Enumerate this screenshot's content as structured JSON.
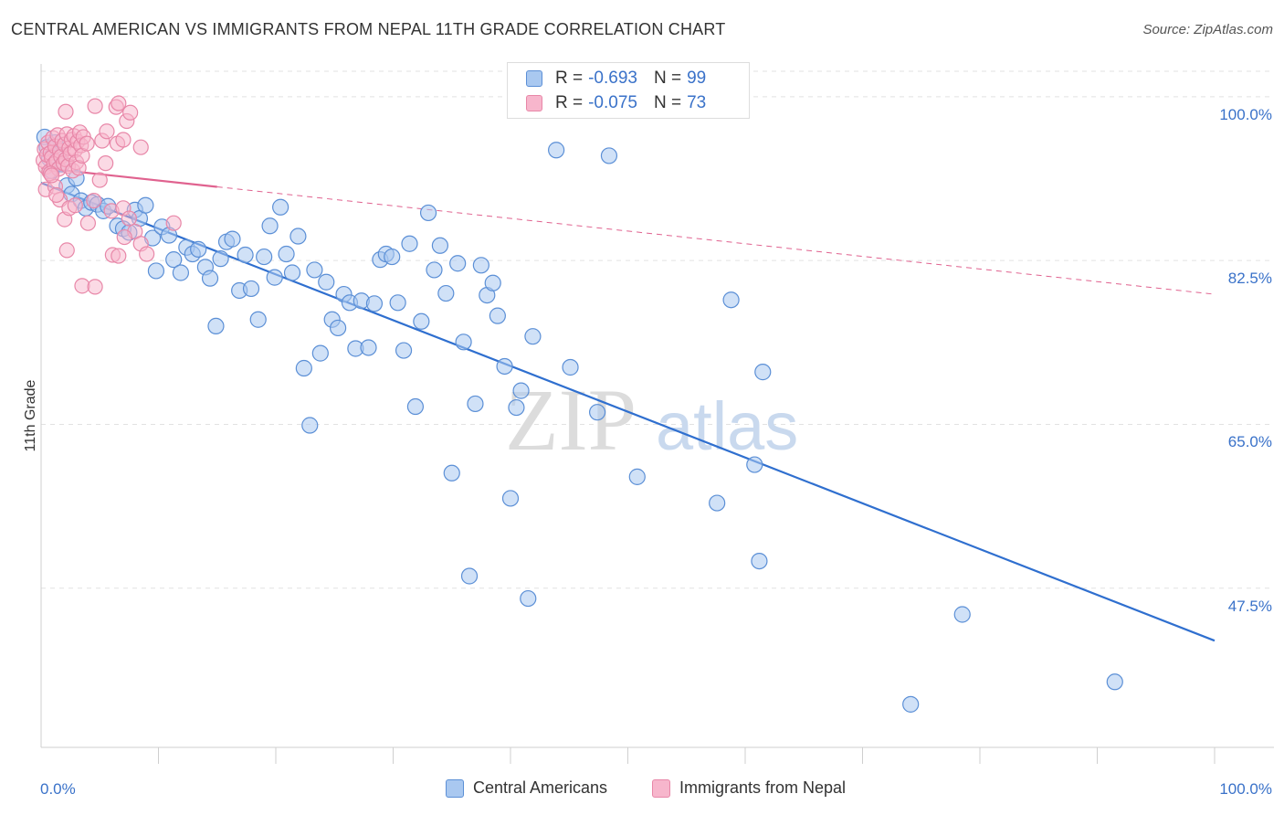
{
  "header": {
    "title": "CENTRAL AMERICAN VS IMMIGRANTS FROM NEPAL 11TH GRADE CORRELATION CHART",
    "source": "Source: ZipAtlas.com"
  },
  "watermark": {
    "zip": "ZIP",
    "atlas": "atlas"
  },
  "legend_top": {
    "rows": [
      {
        "r_label": "R =",
        "r_value": "-0.693",
        "n_label": "N =",
        "n_value": "99"
      },
      {
        "r_label": "R =",
        "r_value": "-0.075",
        "n_label": "N =",
        "n_value": "73"
      }
    ]
  },
  "legend_bottom": {
    "items": [
      {
        "label": "Central Americans"
      },
      {
        "label": "Immigrants from Nepal"
      }
    ]
  },
  "colors": {
    "blue_fill": "#a9c8f0",
    "blue_stroke": "#5b8fd6",
    "blue_line": "#2f6fcf",
    "pink_fill": "#f7b6cc",
    "pink_stroke": "#e887a8",
    "pink_line": "#e0628f",
    "grid": "#e2e2e2",
    "tick_text": "#3a72c9"
  },
  "chart_data": {
    "type": "scatter",
    "title": "CENTRAL AMERICAN VS IMMIGRANTS FROM NEPAL 11TH GRADE CORRELATION CHART",
    "xlabel": "",
    "ylabel": "11th Grade",
    "x_tick_labels": [
      "0.0%",
      "100.0%"
    ],
    "y_tick_labels": [
      "100.0%",
      "82.5%",
      "65.0%",
      "47.5%"
    ],
    "xlim": [
      0,
      100
    ],
    "ylim": [
      30.5,
      103.5
    ],
    "y_ticks": [
      100,
      82.5,
      65,
      47.5
    ],
    "grid": true,
    "series": [
      {
        "name": "Central Americans",
        "r": -0.693,
        "n": 99,
        "trend": {
          "x": [
            0,
            100
          ],
          "y": [
            90.8,
            41.9
          ]
        },
        "points": [
          [
            0.3,
            95.7
          ],
          [
            0.5,
            94.6
          ],
          [
            0.7,
            93.4
          ],
          [
            0.9,
            92.1
          ],
          [
            1.2,
            95.1
          ],
          [
            1.5,
            93.9
          ],
          [
            1.8,
            92.8
          ],
          [
            2.2,
            90.5
          ],
          [
            2.6,
            89.6
          ],
          [
            3.0,
            91.3
          ],
          [
            3.4,
            88.9
          ],
          [
            3.8,
            88.1
          ],
          [
            4.3,
            88.7
          ],
          [
            4.8,
            88.5
          ],
          [
            5.3,
            87.8
          ],
          [
            5.7,
            88.3
          ],
          [
            6.5,
            86.2
          ],
          [
            7.0,
            85.9
          ],
          [
            7.5,
            85.5
          ],
          [
            8.0,
            87.9
          ],
          [
            8.4,
            87.0
          ],
          [
            8.9,
            88.4
          ],
          [
            9.5,
            84.9
          ],
          [
            9.8,
            81.4
          ],
          [
            10.3,
            86.1
          ],
          [
            10.9,
            85.2
          ],
          [
            11.3,
            82.6
          ],
          [
            11.9,
            81.2
          ],
          [
            12.4,
            83.9
          ],
          [
            12.9,
            83.2
          ],
          [
            13.4,
            83.7
          ],
          [
            14.0,
            81.8
          ],
          [
            14.4,
            80.6
          ],
          [
            14.9,
            75.5
          ],
          [
            15.3,
            82.7
          ],
          [
            15.8,
            84.5
          ],
          [
            16.3,
            84.8
          ],
          [
            16.9,
            79.3
          ],
          [
            17.4,
            83.1
          ],
          [
            17.9,
            79.5
          ],
          [
            18.5,
            76.2
          ],
          [
            19.0,
            82.9
          ],
          [
            19.5,
            86.2
          ],
          [
            19.9,
            80.7
          ],
          [
            20.4,
            88.2
          ],
          [
            20.9,
            83.2
          ],
          [
            21.4,
            81.2
          ],
          [
            21.9,
            85.1
          ],
          [
            22.4,
            71.0
          ],
          [
            22.9,
            64.9
          ],
          [
            23.3,
            81.5
          ],
          [
            23.8,
            72.6
          ],
          [
            24.3,
            80.2
          ],
          [
            24.8,
            76.2
          ],
          [
            25.3,
            75.3
          ],
          [
            25.8,
            78.9
          ],
          [
            26.3,
            78.0
          ],
          [
            26.8,
            73.1
          ],
          [
            27.3,
            78.2
          ],
          [
            27.9,
            73.2
          ],
          [
            28.4,
            77.9
          ],
          [
            28.9,
            82.6
          ],
          [
            29.4,
            83.2
          ],
          [
            29.9,
            82.9
          ],
          [
            30.4,
            78.0
          ],
          [
            30.9,
            72.9
          ],
          [
            31.4,
            84.3
          ],
          [
            31.9,
            66.9
          ],
          [
            32.4,
            76.0
          ],
          [
            33.0,
            87.6
          ],
          [
            33.5,
            81.5
          ],
          [
            34.0,
            84.1
          ],
          [
            34.5,
            79.0
          ],
          [
            35.0,
            59.8
          ],
          [
            35.5,
            82.2
          ],
          [
            36.0,
            73.8
          ],
          [
            36.5,
            48.8
          ],
          [
            37.0,
            67.2
          ],
          [
            37.5,
            82.0
          ],
          [
            38.0,
            78.8
          ],
          [
            38.5,
            80.1
          ],
          [
            38.9,
            76.6
          ],
          [
            39.5,
            71.2
          ],
          [
            40.0,
            57.1
          ],
          [
            40.5,
            66.8
          ],
          [
            40.9,
            68.6
          ],
          [
            41.5,
            46.4
          ],
          [
            41.9,
            74.4
          ],
          [
            43.9,
            94.3
          ],
          [
            45.1,
            71.1
          ],
          [
            47.4,
            66.3
          ],
          [
            48.4,
            93.7
          ],
          [
            50.8,
            59.4
          ],
          [
            51.0,
            99.6
          ],
          [
            57.6,
            56.6
          ],
          [
            58.8,
            78.3
          ],
          [
            60.8,
            60.7
          ],
          [
            61.2,
            50.4
          ],
          [
            61.5,
            70.6
          ],
          [
            78.5,
            44.7
          ],
          [
            91.5,
            37.5
          ],
          [
            74.1,
            35.1
          ],
          [
            47.5,
            100.2
          ]
        ]
      },
      {
        "name": "Immigrants from Nepal",
        "r": -0.075,
        "n": 73,
        "trend": {
          "x": [
            0,
            100
          ],
          "y": [
            92.4,
            78.9
          ]
        },
        "points": [
          [
            0.2,
            93.2
          ],
          [
            0.3,
            94.4
          ],
          [
            0.4,
            92.5
          ],
          [
            0.5,
            93.8
          ],
          [
            0.6,
            95.1
          ],
          [
            0.7,
            92.0
          ],
          [
            0.8,
            94.0
          ],
          [
            0.9,
            93.5
          ],
          [
            1.0,
            95.6
          ],
          [
            1.1,
            92.8
          ],
          [
            1.2,
            94.7
          ],
          [
            1.3,
            93.1
          ],
          [
            1.4,
            95.9
          ],
          [
            1.5,
            92.3
          ],
          [
            1.6,
            94.2
          ],
          [
            1.7,
            93.6
          ],
          [
            1.8,
            95.3
          ],
          [
            1.9,
            92.9
          ],
          [
            2.0,
            94.9
          ],
          [
            2.1,
            93.3
          ],
          [
            2.2,
            96.0
          ],
          [
            2.3,
            92.6
          ],
          [
            2.4,
            94.5
          ],
          [
            2.5,
            93.9
          ],
          [
            2.6,
            95.4
          ],
          [
            2.7,
            92.1
          ],
          [
            2.8,
            95.8
          ],
          [
            2.9,
            94.3
          ],
          [
            3.0,
            93.0
          ],
          [
            3.1,
            95.2
          ],
          [
            3.2,
            92.4
          ],
          [
            3.3,
            96.2
          ],
          [
            3.4,
            94.8
          ],
          [
            3.5,
            93.7
          ],
          [
            3.6,
            95.7
          ],
          [
            0.4,
            90.1
          ],
          [
            0.8,
            91.8
          ],
          [
            1.2,
            90.4
          ],
          [
            1.6,
            89.0
          ],
          [
            2.0,
            86.9
          ],
          [
            2.4,
            88.1
          ],
          [
            2.9,
            88.4
          ],
          [
            3.5,
            79.8
          ],
          [
            4.0,
            86.5
          ],
          [
            4.5,
            88.9
          ],
          [
            5.0,
            91.1
          ],
          [
            5.5,
            92.9
          ],
          [
            6.0,
            87.8
          ],
          [
            6.5,
            95.0
          ],
          [
            7.0,
            88.1
          ],
          [
            7.5,
            87.0
          ],
          [
            8.0,
            85.6
          ],
          [
            8.5,
            84.3
          ],
          [
            9.0,
            83.2
          ],
          [
            2.2,
            83.6
          ],
          [
            4.6,
            79.7
          ],
          [
            6.1,
            83.1
          ],
          [
            6.6,
            83.0
          ],
          [
            7.1,
            85.0
          ],
          [
            7.3,
            97.4
          ],
          [
            7.6,
            98.3
          ],
          [
            8.5,
            94.6
          ],
          [
            4.6,
            99.0
          ],
          [
            6.4,
            98.9
          ],
          [
            6.6,
            99.3
          ],
          [
            2.1,
            98.4
          ],
          [
            5.2,
            95.3
          ],
          [
            5.6,
            96.3
          ],
          [
            7.0,
            95.4
          ],
          [
            0.9,
            91.6
          ],
          [
            1.3,
            89.5
          ],
          [
            11.3,
            86.5
          ],
          [
            3.9,
            95.0
          ]
        ]
      }
    ]
  }
}
